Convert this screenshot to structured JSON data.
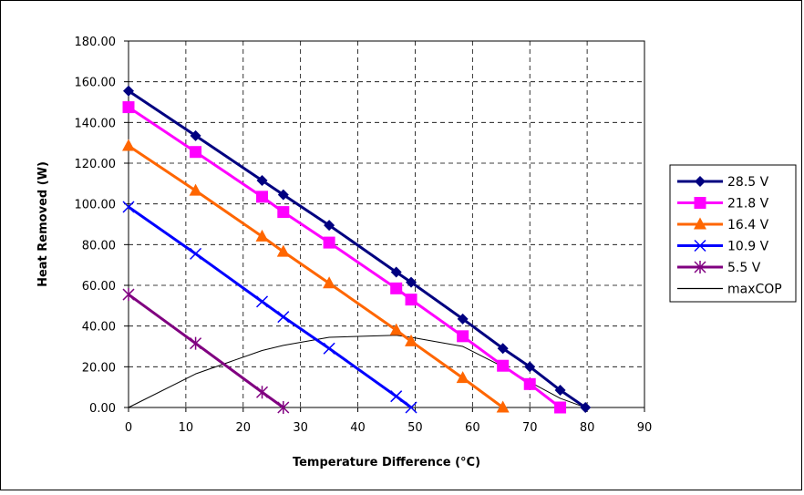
{
  "chart_data": {
    "type": "line",
    "title": "",
    "xlabel": "Temperature Difference (°C)",
    "ylabel": "Heat Removed (W)",
    "xlim": [
      0,
      90
    ],
    "ylim": [
      0,
      180
    ],
    "x_ticks": [
      "0",
      "10",
      "20",
      "30",
      "40",
      "50",
      "60",
      "70",
      "80",
      "90"
    ],
    "y_ticks": [
      "0.00",
      "20.00",
      "40.00",
      "60.00",
      "80.00",
      "100.00",
      "120.00",
      "140.00",
      "160.00",
      "180.00"
    ],
    "grid": true,
    "legend_position": "right",
    "series": [
      {
        "name": "28.5 V",
        "color": "#000080",
        "marker": "diamond",
        "points": [
          [
            0,
            155.5
          ],
          [
            11.7,
            133.5
          ],
          [
            23.3,
            111.5
          ],
          [
            27.0,
            104.5
          ],
          [
            35.0,
            89.5
          ],
          [
            46.7,
            66.5
          ],
          [
            49.3,
            61.5
          ],
          [
            58.3,
            43.5
          ],
          [
            65.3,
            29.0
          ],
          [
            70.0,
            20.0
          ],
          [
            75.3,
            8.5
          ],
          [
            79.7,
            0
          ]
        ]
      },
      {
        "name": "21.8 V",
        "color": "#ff00ff",
        "marker": "square",
        "points": [
          [
            0,
            147.5
          ],
          [
            11.7,
            125.5
          ],
          [
            23.3,
            103.5
          ],
          [
            27.0,
            96.0
          ],
          [
            35.0,
            81.0
          ],
          [
            46.7,
            58.5
          ],
          [
            49.3,
            53.0
          ],
          [
            58.3,
            35.0
          ],
          [
            65.3,
            20.5
          ],
          [
            70.0,
            11.5
          ],
          [
            75.3,
            0
          ]
        ]
      },
      {
        "name": "16.4 V",
        "color": "#ff6600",
        "marker": "triangle",
        "points": [
          [
            0,
            128.5
          ],
          [
            11.7,
            106.5
          ],
          [
            23.3,
            84.0
          ],
          [
            27.0,
            76.5
          ],
          [
            35.0,
            61.0
          ],
          [
            46.7,
            38.0
          ],
          [
            49.3,
            32.5
          ],
          [
            58.3,
            14.5
          ],
          [
            65.3,
            0
          ]
        ]
      },
      {
        "name": "10.9 V",
        "color": "#0000ff",
        "marker": "x",
        "points": [
          [
            0,
            98.5
          ],
          [
            11.7,
            75.5
          ],
          [
            23.3,
            52.0
          ],
          [
            27.0,
            44.5
          ],
          [
            35.0,
            29.0
          ],
          [
            46.7,
            5.5
          ],
          [
            49.3,
            0
          ]
        ]
      },
      {
        "name": "5.5 V",
        "color": "#800080",
        "marker": "star",
        "points": [
          [
            0,
            55.5
          ],
          [
            11.7,
            31.5
          ],
          [
            23.3,
            7.5
          ],
          [
            27.0,
            0
          ]
        ]
      },
      {
        "name": "maxCOP",
        "color": "#000000",
        "marker": "none",
        "points": [
          [
            0,
            0
          ],
          [
            11.7,
            16.5
          ],
          [
            23.3,
            28.0
          ],
          [
            27.0,
            30.5
          ],
          [
            35.0,
            34.5
          ],
          [
            46.7,
            35.5
          ],
          [
            49.3,
            34.5
          ],
          [
            58.3,
            30.0
          ],
          [
            65.3,
            20.0
          ],
          [
            70.0,
            12.5
          ],
          [
            75.3,
            4.5
          ],
          [
            79.7,
            0
          ]
        ]
      }
    ]
  }
}
